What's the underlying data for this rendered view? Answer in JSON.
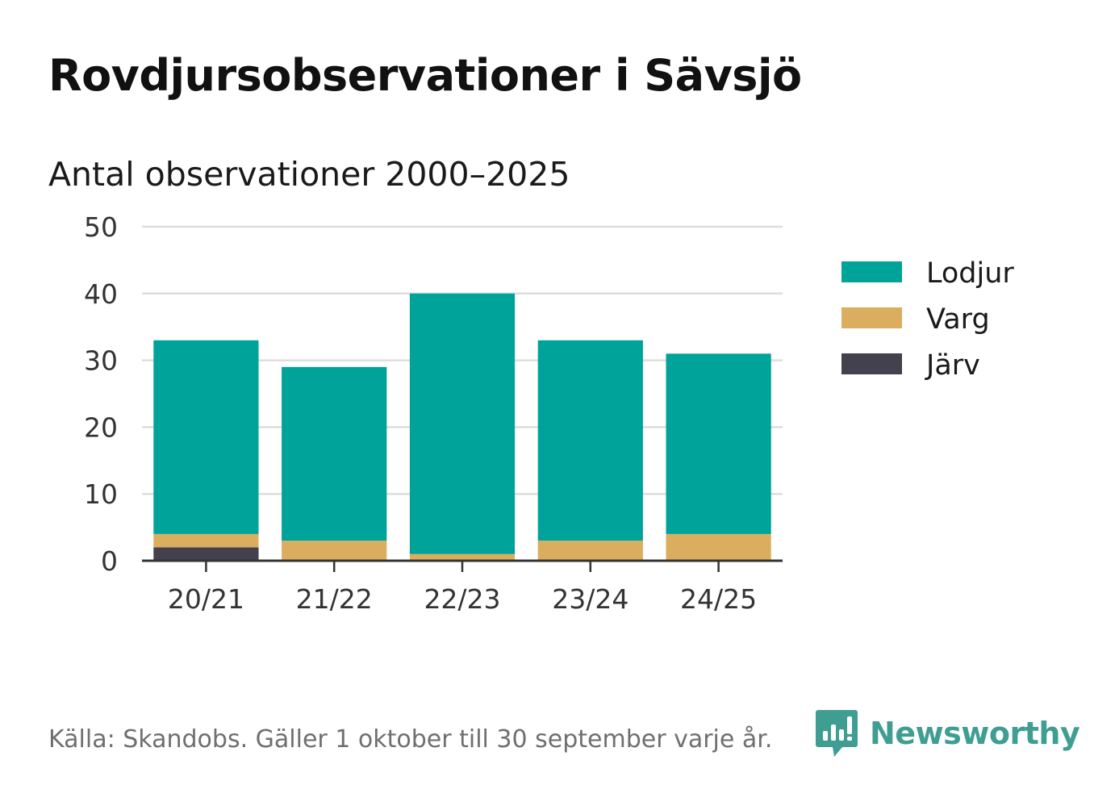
{
  "header": {
    "title": "Rovdjursobservationer i Sävsjö",
    "subtitle": "Antal observationer 2000–2025"
  },
  "footer": {
    "source": "Källa: Skandobs. Gäller 1 oktober till 30 september varje år.",
    "brand": "Newsworthy"
  },
  "colors": {
    "Lodjur": "#00a39a",
    "Varg": "#dbad5e",
    "Järv": "#43414d",
    "grid": "#dddddd",
    "axis": "#333333",
    "brand": "#3f9e92"
  },
  "chart_data": {
    "type": "bar",
    "stacked": true,
    "title": "Antal observationer 2000–2025",
    "xlabel": "",
    "ylabel": "",
    "ylim": [
      0,
      50
    ],
    "yticks": [
      0,
      10,
      20,
      30,
      40,
      50
    ],
    "grid": true,
    "legend_position": "right",
    "categories": [
      "20/21",
      "21/22",
      "22/23",
      "23/24",
      "24/25"
    ],
    "series": [
      {
        "name": "Järv",
        "values": [
          2,
          0,
          0,
          0,
          0
        ]
      },
      {
        "name": "Varg",
        "values": [
          2,
          3,
          1,
          3,
          4
        ]
      },
      {
        "name": "Lodjur",
        "values": [
          29,
          26,
          39,
          30,
          27
        ]
      }
    ],
    "legend_order": [
      "Lodjur",
      "Varg",
      "Järv"
    ]
  }
}
